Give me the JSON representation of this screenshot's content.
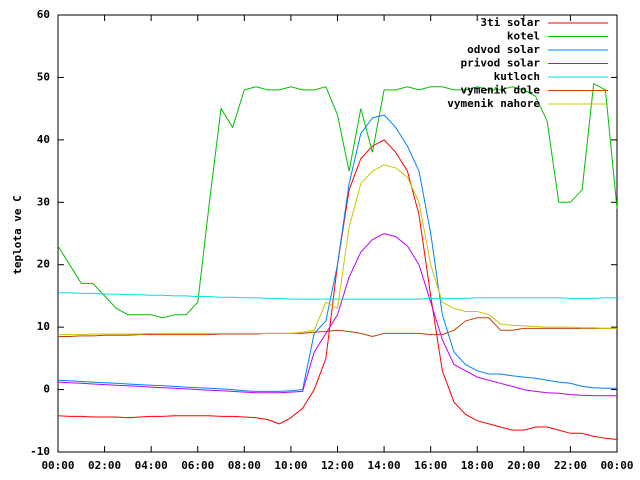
{
  "chart_data": {
    "type": "line",
    "ylabel": "teplota ve C",
    "x": [
      0,
      0.5,
      1,
      1.5,
      2,
      2.5,
      3,
      3.5,
      4,
      4.5,
      5,
      5.5,
      6,
      6.5,
      7,
      7.5,
      8,
      8.5,
      9,
      9.5,
      10,
      10.5,
      11,
      11.5,
      12,
      12.5,
      13,
      13.5,
      14,
      14.5,
      15,
      15.5,
      16,
      16.5,
      17,
      17.5,
      18,
      18.5,
      19,
      19.5,
      20,
      20.5,
      21,
      21.5,
      22,
      22.5,
      23,
      23.5,
      24
    ],
    "xlim": [
      0,
      24
    ],
    "xticks": [
      {
        "value": 0,
        "label": "00:00"
      },
      {
        "value": 2,
        "label": "02:00"
      },
      {
        "value": 4,
        "label": "04:00"
      },
      {
        "value": 6,
        "label": "06:00"
      },
      {
        "value": 8,
        "label": "08:00"
      },
      {
        "value": 10,
        "label": "10:00"
      },
      {
        "value": 12,
        "label": "12:00"
      },
      {
        "value": 14,
        "label": "14:00"
      },
      {
        "value": 16,
        "label": "16:00"
      },
      {
        "value": 18,
        "label": "18:00"
      },
      {
        "value": 20,
        "label": "20:00"
      },
      {
        "value": 22,
        "label": "22:00"
      },
      {
        "value": 24,
        "label": "00:00"
      }
    ],
    "ylim": [
      -10,
      60
    ],
    "yticks": [
      -10,
      0,
      10,
      20,
      30,
      40,
      50,
      60
    ],
    "series": [
      {
        "name": "3ti solar",
        "color": "#ff0000",
        "values": [
          -4.2,
          -4.3,
          -4.3,
          -4.4,
          -4.4,
          -4.4,
          -4.5,
          -4.4,
          -4.3,
          -4.3,
          -4.2,
          -4.2,
          -4.2,
          -4.2,
          -4.3,
          -4.3,
          -4.4,
          -4.5,
          -4.8,
          -5.5,
          -4.5,
          -3,
          0,
          5,
          20,
          32,
          37,
          39,
          40,
          38,
          35,
          28,
          15,
          3,
          -2,
          -4,
          -5,
          -5.5,
          -6,
          -6.5,
          -6.5,
          -6,
          -6,
          -6.5,
          -7,
          -7,
          -7.5,
          -7.8,
          -8
        ]
      },
      {
        "name": "kotel",
        "color": "#00c000",
        "values": [
          23,
          20,
          17,
          17,
          15,
          13,
          12,
          12,
          12,
          11.5,
          12,
          12,
          14,
          30,
          45,
          42,
          48,
          48.5,
          48,
          48,
          48.5,
          48,
          48,
          48.5,
          44,
          35,
          45,
          38,
          48,
          48,
          48.5,
          48,
          48.5,
          48.5,
          48,
          48,
          48.5,
          48,
          48,
          48.5,
          48,
          47,
          43,
          30,
          30,
          32,
          49,
          48,
          29
        ]
      },
      {
        "name": "odvod solar",
        "color": "#0080ff",
        "values": [
          1.5,
          1.4,
          1.3,
          1.2,
          1.1,
          1,
          0.9,
          0.8,
          0.7,
          0.6,
          0.5,
          0.4,
          0.3,
          0.2,
          0.1,
          0,
          -0.2,
          -0.3,
          -0.3,
          -0.3,
          -0.2,
          0,
          9,
          11,
          20,
          33,
          41,
          43.5,
          44,
          42,
          39,
          35,
          25,
          12,
          6,
          4,
          3,
          2.5,
          2.5,
          2.2,
          2,
          1.8,
          1.5,
          1.2,
          1,
          0.5,
          0.3,
          0.2,
          0.2
        ]
      },
      {
        "name": "privod solar",
        "color": "#c000ff",
        "values": [
          1.2,
          1.1,
          1,
          0.9,
          0.8,
          0.7,
          0.6,
          0.5,
          0.4,
          0.3,
          0.2,
          0.1,
          0,
          -0.1,
          -0.2,
          -0.3,
          -0.4,
          -0.5,
          -0.5,
          -0.5,
          -0.4,
          -0.3,
          6,
          9,
          12,
          18,
          22,
          24,
          25,
          24.5,
          23,
          20,
          14,
          8,
          4,
          3,
          2,
          1.5,
          1,
          0.5,
          0,
          -0.3,
          -0.5,
          -0.6,
          -0.8,
          -0.9,
          -1,
          -1,
          -1
        ]
      },
      {
        "name": "kutloch",
        "color": "#00e0e0",
        "values": [
          15.5,
          15.5,
          15.4,
          15.4,
          15.3,
          15.3,
          15.2,
          15.2,
          15.1,
          15.1,
          15,
          15,
          14.9,
          14.9,
          14.8,
          14.8,
          14.7,
          14.7,
          14.6,
          14.6,
          14.5,
          14.5,
          14.5,
          14.5,
          14.5,
          14.5,
          14.5,
          14.5,
          14.5,
          14.5,
          14.5,
          14.5,
          14.6,
          14.6,
          14.6,
          14.6,
          14.7,
          14.7,
          14.7,
          14.7,
          14.7,
          14.7,
          14.7,
          14.7,
          14.6,
          14.6,
          14.6,
          14.7,
          14.7
        ]
      },
      {
        "name": "vymenik dole",
        "color": "#c04000",
        "values": [
          8.5,
          8.5,
          8.6,
          8.6,
          8.7,
          8.7,
          8.7,
          8.8,
          8.8,
          8.8,
          8.8,
          8.8,
          8.8,
          8.8,
          8.9,
          8.9,
          8.9,
          8.9,
          9,
          9,
          9,
          9,
          9.2,
          9.3,
          9.5,
          9.3,
          9,
          8.5,
          9,
          9,
          9,
          9,
          8.8,
          8.8,
          9.5,
          11,
          11.5,
          11.5,
          9.5,
          9.5,
          9.8,
          9.8,
          9.8,
          9.8,
          9.8,
          9.8,
          9.8,
          9.8,
          9.8
        ]
      },
      {
        "name": "vymenik nahore",
        "color": "#c8c800",
        "values": [
          8.8,
          8.8,
          8.8,
          8.9,
          8.9,
          8.9,
          8.9,
          8.9,
          9,
          9,
          9,
          9,
          9,
          9,
          9,
          9,
          9,
          9,
          9,
          9,
          9,
          9.2,
          9.5,
          14,
          13,
          26,
          33,
          35,
          36,
          35.5,
          34,
          30,
          20,
          14,
          13,
          12.5,
          12.5,
          12,
          10.5,
          10.3,
          10.2,
          10.1,
          10,
          10,
          10,
          9.9,
          9.9,
          9.8,
          9.8
        ]
      }
    ]
  }
}
